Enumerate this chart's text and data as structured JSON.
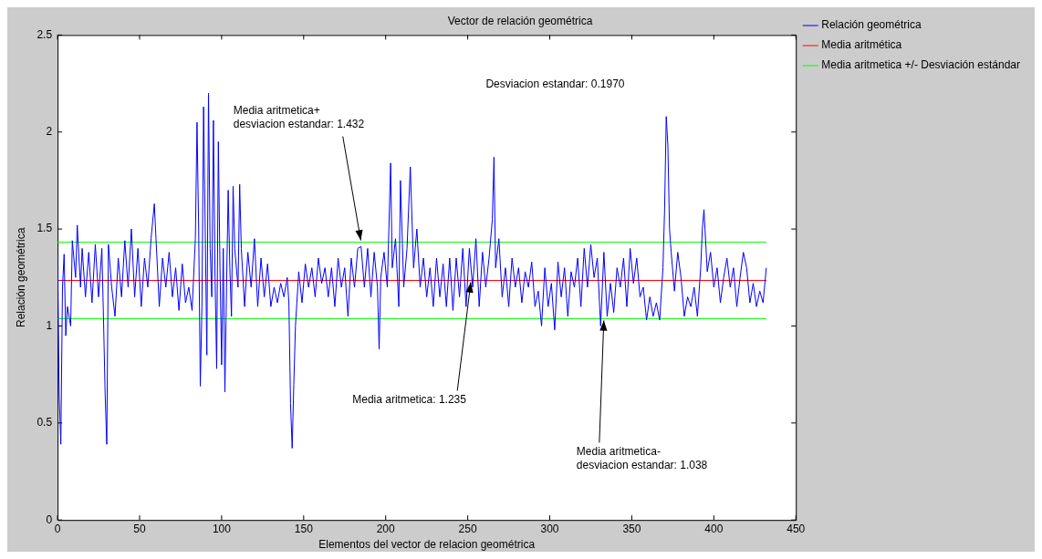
{
  "chart_data": {
    "type": "line",
    "title": "Vector de relación geométrica",
    "xlabel": "Elementos del vector de relacion geométrica",
    "ylabel": "Relación geométrica",
    "xlim": [
      0,
      450
    ],
    "xticks": [
      0,
      50,
      100,
      150,
      200,
      250,
      300,
      350,
      400,
      450
    ],
    "ylim": [
      0,
      2.5
    ],
    "yticks": [
      0,
      0.5,
      1,
      1.5,
      2,
      2.5
    ],
    "legend": "right",
    "grid": false,
    "marker": "none",
    "line_style": "solid",
    "annotations": [
      "Desviacion estandar: 0.1970",
      {
        "text": "Media aritmetica+\ndesviacion estandar: 1.432",
        "x": 185,
        "y": 1.432
      },
      {
        "text": "Media aritmetica: 1.235",
        "x": 252,
        "y": 1.235
      },
      {
        "text": "Media aritmetica-\ndesviacion estandar: 1.038",
        "x": 333,
        "y": 1.038
      }
    ],
    "series": [
      {
        "name": "Relación geométrica",
        "color": "#0000ff",
        "x": [
          0,
          1,
          2,
          3,
          4,
          5,
          6,
          8,
          9,
          11,
          12,
          14,
          15,
          17,
          19,
          21,
          23,
          25,
          27,
          28,
          29,
          30,
          31,
          33,
          35,
          37,
          39,
          41,
          43,
          45,
          47,
          49,
          51,
          53,
          55,
          57,
          59,
          60,
          62,
          64,
          66,
          68,
          70,
          72,
          74,
          76,
          78,
          80,
          82,
          84,
          85,
          86,
          87,
          88,
          89,
          90,
          91,
          92,
          93,
          94,
          95,
          96,
          97,
          98,
          99,
          100,
          101,
          102,
          103,
          104,
          105,
          106,
          107,
          108,
          110,
          111,
          112,
          114,
          116,
          118,
          120,
          122,
          124,
          126,
          128,
          130,
          132,
          134,
          136,
          138,
          140,
          141,
          142,
          143,
          144,
          145,
          147,
          149,
          151,
          153,
          155,
          157,
          159,
          161,
          163,
          165,
          167,
          169,
          171,
          173,
          175,
          177,
          179,
          181,
          183,
          185,
          187,
          189,
          191,
          193,
          195,
          196,
          197,
          199,
          201,
          203,
          204,
          206,
          208,
          209,
          211,
          213,
          215,
          217,
          219,
          221,
          223,
          225,
          227,
          229,
          231,
          233,
          235,
          237,
          239,
          241,
          243,
          245,
          247,
          249,
          251,
          253,
          255,
          257,
          259,
          261,
          263,
          265,
          266,
          267,
          269,
          271,
          273,
          275,
          277,
          279,
          281,
          283,
          285,
          287,
          289,
          291,
          293,
          295,
          297,
          299,
          301,
          303,
          305,
          307,
          309,
          311,
          313,
          315,
          317,
          319,
          321,
          323,
          325,
          327,
          329,
          331,
          333,
          335,
          337,
          339,
          341,
          343,
          345,
          347,
          349,
          351,
          353,
          355,
          357,
          359,
          361,
          363,
          365,
          367,
          369,
          370,
          371,
          372,
          373,
          374,
          376,
          378,
          380,
          382,
          384,
          386,
          388,
          390,
          392,
          393,
          394,
          396,
          398,
          400,
          402,
          404,
          406,
          408,
          410,
          412,
          414,
          416,
          418,
          420,
          422,
          424,
          426,
          428,
          430,
          432
        ],
        "values": [
          1.37,
          0.64,
          0.39,
          1.2,
          1.37,
          0.95,
          1.1,
          1.0,
          1.44,
          1.25,
          1.52,
          1.2,
          1.4,
          1.15,
          1.38,
          1.12,
          1.42,
          1.15,
          1.4,
          1.04,
          0.65,
          0.39,
          1.42,
          1.2,
          1.05,
          1.35,
          1.15,
          1.44,
          1.2,
          1.5,
          1.15,
          1.4,
          1.1,
          1.35,
          1.2,
          1.45,
          1.63,
          1.45,
          1.1,
          1.35,
          1.2,
          1.38,
          1.15,
          1.3,
          1.08,
          1.32,
          1.12,
          1.2,
          1.08,
          1.45,
          2.05,
          1.5,
          0.69,
          1.1,
          2.13,
          1.5,
          0.85,
          2.2,
          1.4,
          1.15,
          2.06,
          1.25,
          0.78,
          1.95,
          1.3,
          0.8,
          1.4,
          0.66,
          1.2,
          1.7,
          1.3,
          1.05,
          1.72,
          1.4,
          1.2,
          1.73,
          1.4,
          1.1,
          1.38,
          1.2,
          1.45,
          1.1,
          1.35,
          1.15,
          1.32,
          1.1,
          1.2,
          1.12,
          1.22,
          1.15,
          1.25,
          1.12,
          0.6,
          0.37,
          0.7,
          1.0,
          1.28,
          1.12,
          1.32,
          1.2,
          1.3,
          1.15,
          1.35,
          1.22,
          1.3,
          1.15,
          1.3,
          1.1,
          1.35,
          1.2,
          1.3,
          1.05,
          1.35,
          1.2,
          1.4,
          1.41,
          1.2,
          1.4,
          1.15,
          1.38,
          1.2,
          0.88,
          1.25,
          1.38,
          1.2,
          1.84,
          1.3,
          1.45,
          1.1,
          1.75,
          1.2,
          1.4,
          1.82,
          1.3,
          1.5,
          1.2,
          1.35,
          1.15,
          1.3,
          1.1,
          1.35,
          1.15,
          1.32,
          1.1,
          1.35,
          1.08,
          1.35,
          1.15,
          1.4,
          1.1,
          1.4,
          1.2,
          1.45,
          1.1,
          1.38,
          1.2,
          1.35,
          1.55,
          1.87,
          1.3,
          1.45,
          1.15,
          1.3,
          1.1,
          1.35,
          1.2,
          1.3,
          1.12,
          1.28,
          1.2,
          1.33,
          1.1,
          1.18,
          1.0,
          1.3,
          1.1,
          1.22,
          0.98,
          1.33,
          1.15,
          1.3,
          1.05,
          1.28,
          1.2,
          1.35,
          1.1,
          1.4,
          1.2,
          1.42,
          1.25,
          1.35,
          1.0,
          1.38,
          1.05,
          1.22,
          1.07,
          1.3,
          1.2,
          1.35,
          1.1,
          1.4,
          1.22,
          1.35,
          1.15,
          1.2,
          1.03,
          1.15,
          1.05,
          1.12,
          1.03,
          1.3,
          1.6,
          2.08,
          1.93,
          1.5,
          1.38,
          1.18,
          1.38,
          1.25,
          1.05,
          1.15,
          1.1,
          1.2,
          1.05,
          1.3,
          1.5,
          1.6,
          1.28,
          1.38,
          1.2,
          1.3,
          1.12,
          1.25,
          1.35,
          1.2,
          1.3,
          1.1,
          1.25,
          1.38,
          1.3,
          1.12,
          1.22,
          1.1,
          1.18,
          1.12,
          1.3
        ]
      },
      {
        "name": "Media aritmética",
        "color": "#ff0000",
        "x": [
          0,
          432
        ],
        "values": [
          1.235,
          1.235
        ]
      },
      {
        "name": "Media aritmetica +/- Desviación estándar",
        "color": "#00ff00",
        "x": [
          0,
          432
        ],
        "values": [
          1.432,
          1.432
        ]
      },
      {
        "color": "#00ff00",
        "x": [
          0,
          432
        ],
        "values": [
          1.038,
          1.038
        ]
      }
    ]
  }
}
